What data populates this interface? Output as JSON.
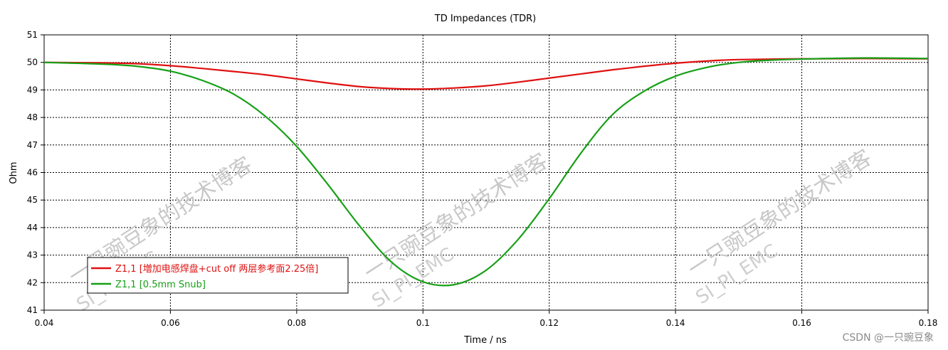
{
  "chart_data": {
    "type": "line",
    "title": "TD Impedances (TDR)",
    "xlabel": "Time / ns",
    "ylabel": "Ohm",
    "xlim": [
      0.04,
      0.18
    ],
    "ylim": [
      41,
      51
    ],
    "xticks": [
      0.04,
      0.06,
      0.08,
      0.1,
      0.12,
      0.14,
      0.16,
      0.18
    ],
    "xtick_labels": [
      "0.04",
      "0.06",
      "0.08",
      "0.1",
      "0.12",
      "0.14",
      "0.16",
      "0.18"
    ],
    "yticks": [
      41,
      42,
      43,
      44,
      45,
      46,
      47,
      48,
      49,
      50,
      51
    ],
    "ytick_labels": [
      "41",
      "42",
      "43",
      "44",
      "45",
      "46",
      "47",
      "48",
      "49",
      "50",
      "51"
    ],
    "grid": true,
    "legend_position": "bottom-left",
    "series": [
      {
        "name": "Z1,1 [増加电感焊盘+cut off 两层参考面2.25倍]",
        "color": "#e01010",
        "x": [
          0.04,
          0.05,
          0.055,
          0.06,
          0.065,
          0.07,
          0.075,
          0.08,
          0.085,
          0.09,
          0.095,
          0.1,
          0.105,
          0.11,
          0.115,
          0.12,
          0.125,
          0.13,
          0.135,
          0.14,
          0.145,
          0.15,
          0.16,
          0.17,
          0.18
        ],
        "y": [
          50.0,
          49.98,
          49.95,
          49.88,
          49.78,
          49.67,
          49.55,
          49.4,
          49.25,
          49.12,
          49.05,
          49.03,
          49.07,
          49.15,
          49.28,
          49.43,
          49.58,
          49.73,
          49.86,
          49.97,
          50.05,
          50.1,
          50.13,
          50.14,
          50.13
        ]
      },
      {
        "name": "Z1,1 [0.5mm Snub]",
        "color": "#16a016",
        "x": [
          0.04,
          0.05,
          0.055,
          0.06,
          0.065,
          0.07,
          0.075,
          0.08,
          0.085,
          0.09,
          0.095,
          0.1,
          0.105,
          0.11,
          0.115,
          0.12,
          0.125,
          0.13,
          0.135,
          0.14,
          0.145,
          0.15,
          0.155,
          0.16,
          0.17,
          0.18
        ],
        "y": [
          50.0,
          49.93,
          49.85,
          49.68,
          49.35,
          48.85,
          48.05,
          46.95,
          45.55,
          44.05,
          42.75,
          42.03,
          41.93,
          42.45,
          43.55,
          45.05,
          46.7,
          48.1,
          48.95,
          49.5,
          49.82,
          50.0,
          50.08,
          50.12,
          50.16,
          50.14
        ]
      }
    ]
  },
  "watermark": {
    "line1": "一只豌豆象的技术博客",
    "line2": "SI_PI_EMC"
  },
  "credit": "CSDN @一只豌豆象"
}
